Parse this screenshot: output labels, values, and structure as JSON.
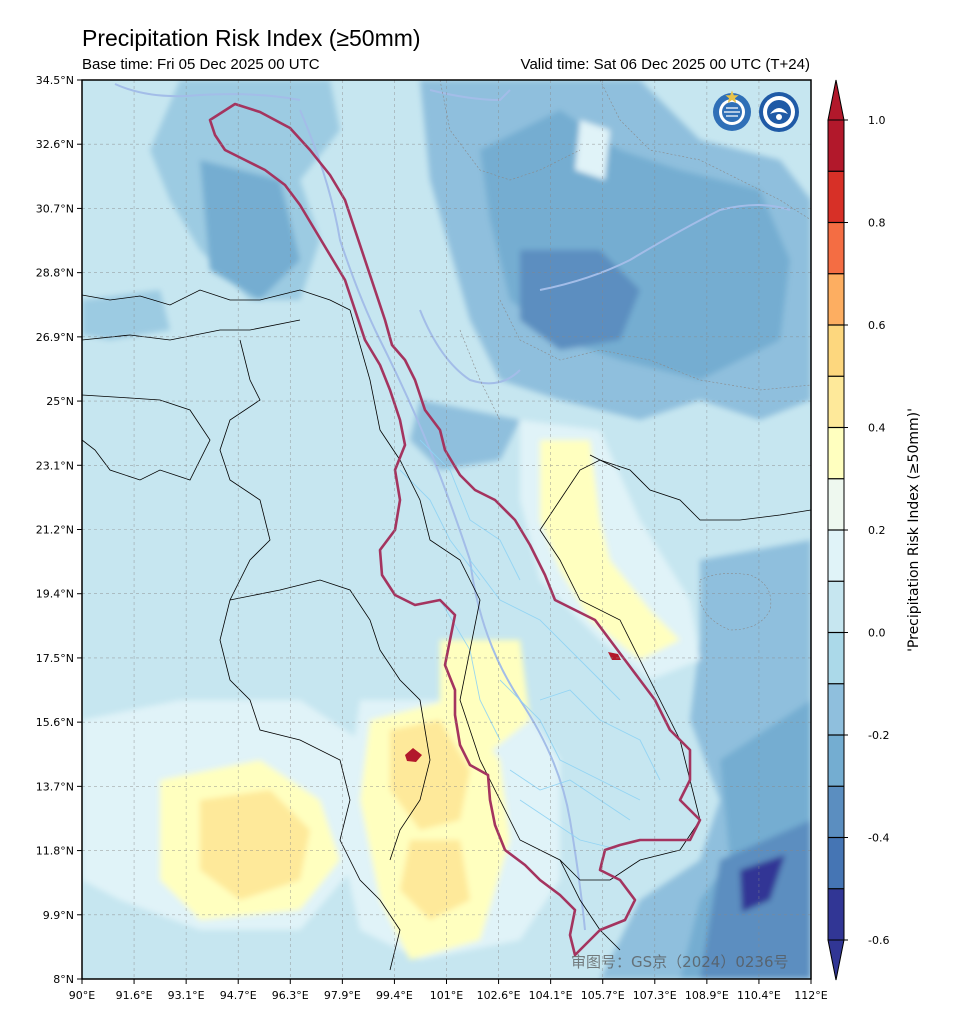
{
  "header": {
    "title": "Precipitation Risk Index (≥50mm)",
    "base_time": "Base time: Fri 05 Dec 2025 00 UTC",
    "valid_time": "Valid time: Sat 06 Dec 2025 00 UTC (T+24)"
  },
  "axes": {
    "lat_labels": [
      "34.5°N",
      "32.6°N",
      "30.7°N",
      "28.8°N",
      "26.9°N",
      "25°N",
      "23.1°N",
      "21.2°N",
      "19.4°N",
      "17.5°N",
      "15.6°N",
      "13.7°N",
      "11.8°N",
      "9.9°N",
      "8°N"
    ],
    "lon_labels": [
      "90°E",
      "91.6°E",
      "93.1°E",
      "94.7°E",
      "96.3°E",
      "97.9°E",
      "99.4°E",
      "101°E",
      "102.6°E",
      "104.1°E",
      "105.7°E",
      "107.3°E",
      "108.9°E",
      "110.4°E",
      "112°E"
    ]
  },
  "colorbar": {
    "title": "'Precipitation Risk Index (≥50mm)'",
    "min": -0.6,
    "max": 1.0,
    "tick_labels": [
      "1.0",
      "0.8",
      "0.6",
      "0.4",
      "0.2",
      "0.0",
      "-0.2",
      "-0.4",
      "-0.6"
    ],
    "colors": [
      "#313695",
      "#4575b4",
      "#5b8ec0",
      "#74add1",
      "#8fbfdd",
      "#abd9e9",
      "#c6e6f0",
      "#e0f3f8",
      "#eef8ef",
      "#ffffbf",
      "#fee99a",
      "#fdd77e",
      "#fdae61",
      "#f46d43",
      "#d73027",
      "#b2182b"
    ]
  },
  "logos": {
    "left": "wmo-logo",
    "right": "cma-logo"
  },
  "watermark": "审图号：GS京（2024）0236号"
}
